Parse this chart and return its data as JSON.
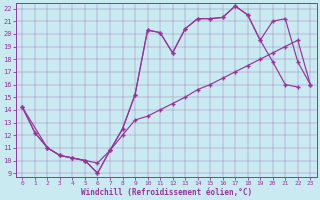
{
  "xlabel": "Windchill (Refroidissement éolien,°C)",
  "bg_color": "#c8eaf0",
  "line_color": "#993399",
  "xlim": [
    -0.5,
    23.5
  ],
  "ylim": [
    8.7,
    22.4
  ],
  "xticks": [
    0,
    1,
    2,
    3,
    4,
    5,
    6,
    7,
    8,
    9,
    10,
    11,
    12,
    13,
    14,
    15,
    16,
    17,
    18,
    19,
    20,
    21,
    22,
    23
  ],
  "yticks": [
    9,
    10,
    11,
    12,
    13,
    14,
    15,
    16,
    17,
    18,
    19,
    20,
    21,
    22
  ],
  "line1_x": [
    0,
    1,
    2,
    3,
    4,
    5,
    6,
    7,
    8,
    9,
    10,
    11,
    12,
    13,
    14,
    15,
    16,
    17,
    18,
    19,
    20,
    21,
    22
  ],
  "line1_y": [
    14.2,
    12.2,
    11.0,
    10.4,
    10.2,
    10.0,
    9.0,
    10.8,
    12.5,
    15.2,
    20.3,
    20.1,
    18.5,
    20.4,
    21.2,
    21.2,
    21.3,
    22.2,
    21.5,
    19.5,
    17.8,
    16.0,
    15.8
  ],
  "line2_x": [
    0,
    2,
    3,
    4,
    5,
    6,
    7,
    8,
    9,
    10,
    11,
    12,
    13,
    14,
    15,
    16,
    17,
    18,
    19,
    20,
    21,
    22,
    23
  ],
  "line2_y": [
    14.2,
    11.0,
    10.4,
    10.2,
    10.0,
    9.8,
    10.8,
    12.0,
    13.2,
    13.5,
    14.0,
    14.5,
    15.0,
    15.6,
    16.0,
    16.5,
    17.0,
    17.5,
    18.0,
    18.5,
    19.0,
    19.5,
    16.0
  ],
  "line3_x": [
    0,
    1,
    2,
    3,
    4,
    5,
    6,
    7,
    8,
    9,
    10,
    11,
    12,
    13,
    14,
    15,
    16,
    17,
    18,
    19,
    20,
    21,
    22,
    23
  ],
  "line3_y": [
    14.2,
    12.2,
    11.0,
    10.4,
    10.2,
    10.0,
    9.0,
    10.8,
    12.5,
    15.2,
    20.3,
    20.1,
    18.5,
    20.4,
    21.2,
    21.2,
    21.3,
    22.2,
    21.5,
    19.5,
    21.0,
    21.2,
    17.8,
    16.0
  ]
}
